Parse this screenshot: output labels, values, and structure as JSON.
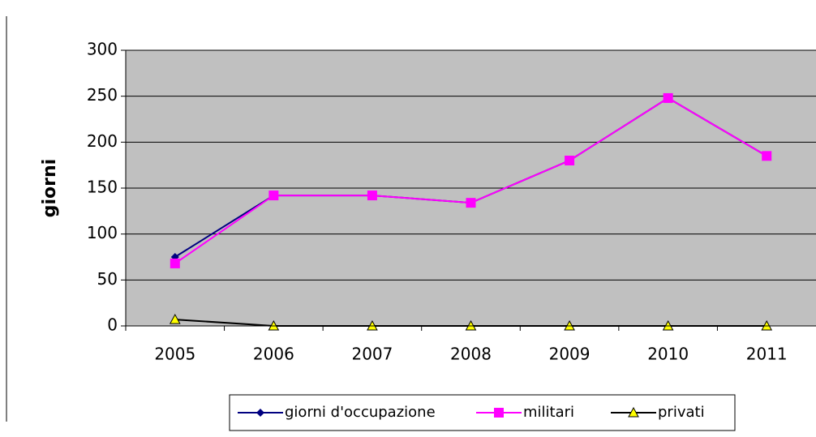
{
  "chart_data": {
    "type": "line",
    "y_label": "giorni",
    "categories": [
      "2005",
      "2006",
      "2007",
      "2008",
      "2009",
      "2010",
      "2011"
    ],
    "series": [
      {
        "name": "giorni d'occupazione",
        "color": "#000080",
        "marker": "diamond",
        "marker_color": "#000080",
        "values": [
          75,
          142,
          142,
          134,
          180,
          248,
          185
        ]
      },
      {
        "name": "militari",
        "color": "#ff00ff",
        "marker": "square",
        "marker_color": "#ff00ff",
        "values": [
          68,
          142,
          142,
          134,
          180,
          248,
          185
        ]
      },
      {
        "name": "privati",
        "color": "#000000",
        "marker": "triangle",
        "marker_color": "#ffff00",
        "values": [
          7,
          0,
          0,
          0,
          0,
          0,
          0
        ]
      }
    ],
    "ylim": [
      0,
      300
    ],
    "yticks": [
      0,
      50,
      100,
      150,
      200,
      250,
      300
    ],
    "grid": true,
    "plot_background": "#c0c0c0",
    "legend": "bottom"
  }
}
